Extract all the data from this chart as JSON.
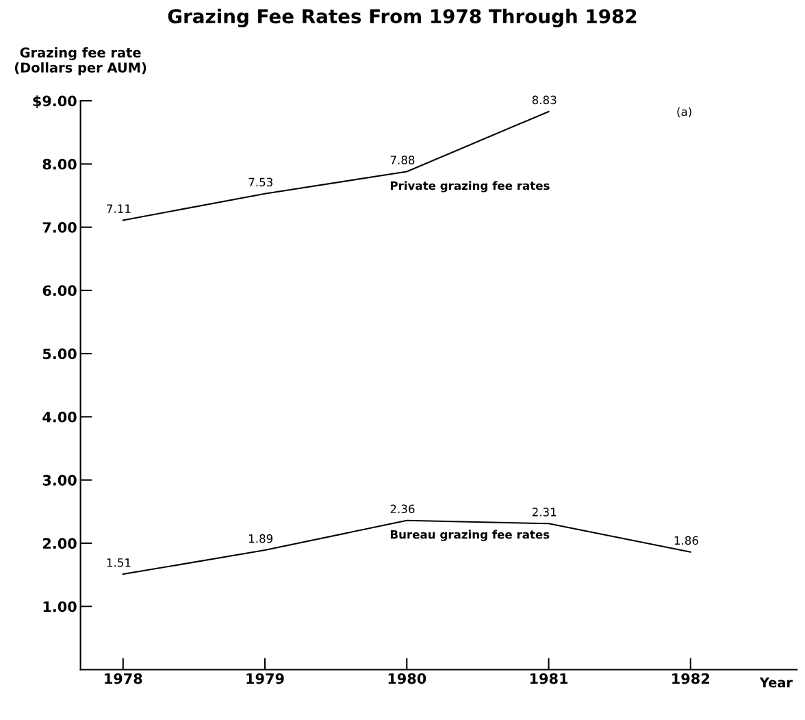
{
  "chart_data": {
    "type": "line",
    "title": "Grazing Fee Rates From 1978 Through 1982",
    "ylabel": "Grazing fee rate\n(Dollars per AUM)",
    "xlabel": "Year",
    "categories": [
      "1978",
      "1979",
      "1980",
      "1981",
      "1982"
    ],
    "series": [
      {
        "name": "Private grazing fee rates",
        "color": "#000000",
        "values": [
          7.11,
          7.53,
          7.88,
          8.83,
          null
        ]
      },
      {
        "name": "Bureau grazing fee rates",
        "color": "#000000",
        "values": [
          1.51,
          1.89,
          2.36,
          2.31,
          1.86
        ]
      }
    ],
    "ylim": [
      0,
      9
    ],
    "yticks": [
      {
        "value": 1,
        "label": "1.00"
      },
      {
        "value": 2,
        "label": "2.00"
      },
      {
        "value": 3,
        "label": "3.00"
      },
      {
        "value": 4,
        "label": "4.00"
      },
      {
        "value": 5,
        "label": "5.00"
      },
      {
        "value": 6,
        "label": "6.00"
      },
      {
        "value": 7,
        "label": "7.00"
      },
      {
        "value": 8,
        "label": "8.00"
      },
      {
        "value": 9,
        "label": "$9.00"
      }
    ],
    "annotations": [
      "(a)"
    ],
    "data_labels": true,
    "grid": false,
    "legend": false,
    "marker": "none",
    "line_style": "solid"
  }
}
